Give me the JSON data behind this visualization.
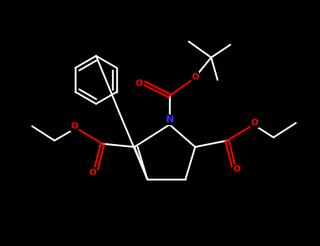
{
  "bg_color": "#000000",
  "bond_color": "#FFFFFF",
  "N_color": "#3333FF",
  "O_color": "#FF0000",
  "bond_width": 1.8,
  "fig_width": 4.55,
  "fig_height": 3.5,
  "dpi": 100,
  "xlim": [
    0,
    10
  ],
  "ylim": [
    0,
    7.7
  ]
}
